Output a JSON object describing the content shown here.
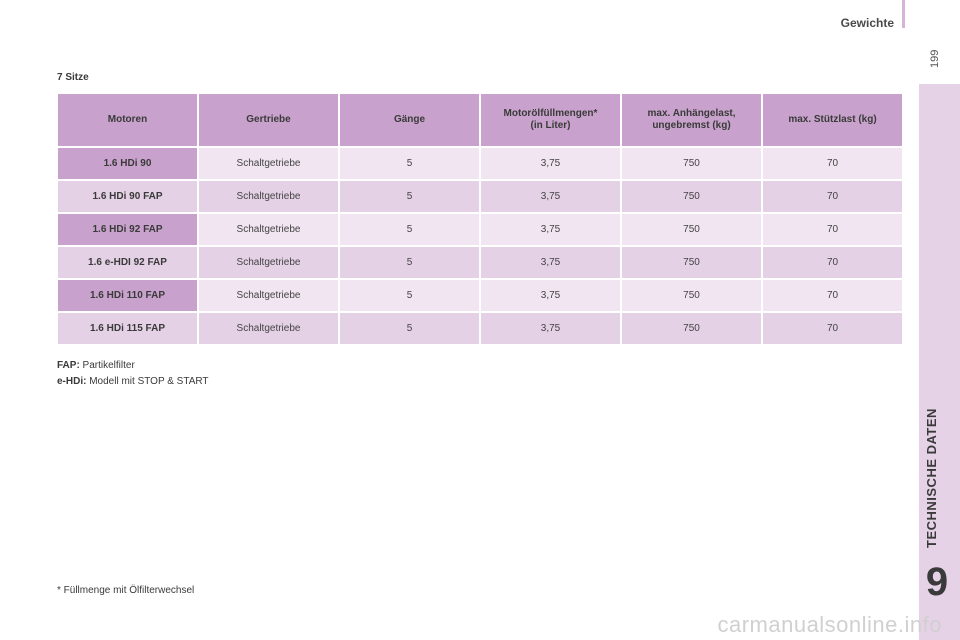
{
  "header": {
    "title": "Gewichte",
    "page_number": "199"
  },
  "sidebar": {
    "chapter_title": "TECHNISCHE DATEN",
    "chapter_number": "9"
  },
  "section": {
    "title": "7 Sitze"
  },
  "table": {
    "columns": [
      "Motoren",
      "Gertriebe",
      "Gänge",
      "Motorölfüllmengen*\n(in Liter)",
      "max. Anhängelast,\nungebremst (kg)",
      "max. Stützlast (kg)"
    ],
    "rows": [
      [
        "1.6 HDi 90",
        "Schaltgetriebe",
        "5",
        "3,75",
        "750",
        "70"
      ],
      [
        "1.6 HDi 90 FAP",
        "Schaltgetriebe",
        "5",
        "3,75",
        "750",
        "70"
      ],
      [
        "1.6 HDi 92 FAP",
        "Schaltgetriebe",
        "5",
        "3,75",
        "750",
        "70"
      ],
      [
        "1.6 e-HDI 92 FAP",
        "Schaltgetriebe",
        "5",
        "3,75",
        "750",
        "70"
      ],
      [
        "1.6 HDi 110 FAP",
        "Schaltgetriebe",
        "5",
        "3,75",
        "750",
        "70"
      ],
      [
        "1.6 HDi 115 FAP",
        "Schaltgetriebe",
        "5",
        "3,75",
        "750",
        "70"
      ]
    ]
  },
  "notes": {
    "fap_term": "FAP:",
    "fap_text": " Partikelfilter",
    "ehdi_term": "e-HDi:",
    "ehdi_text": " Modell mit STOP & START"
  },
  "footnote": "* Füllmenge mit Ölfilterwechsel",
  "watermark": "carmanualsonline.info",
  "colors": {
    "accent": "#c8a2cc",
    "row_light": "#f1e5f1",
    "row_dark": "#e5d1e6",
    "sidebar": "#e6d2e7"
  }
}
